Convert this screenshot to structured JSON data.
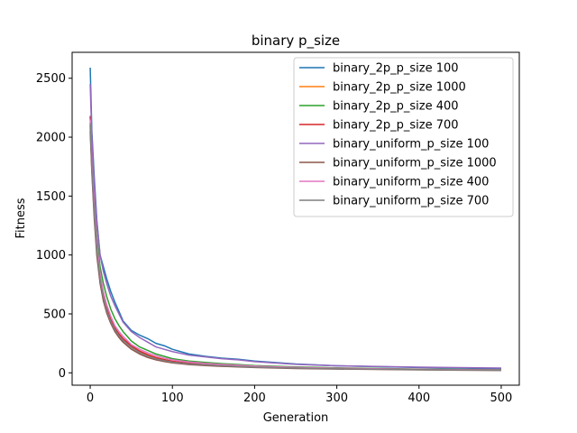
{
  "chart_data": {
    "type": "line",
    "title": "binary p_size",
    "xlabel": "Generation",
    "ylabel": "Fitness",
    "xlim": [
      -22,
      522
    ],
    "ylim": [
      -105,
      2720
    ],
    "xticks": [
      0,
      100,
      200,
      300,
      400,
      500
    ],
    "yticks": [
      0,
      500,
      1000,
      1500,
      2000,
      2500
    ],
    "grid": false,
    "legend_position": "top-right",
    "series": [
      {
        "name": "binary_2p_p_size 100",
        "color": "#1f77b4",
        "x": [
          0,
          2,
          5,
          8,
          12,
          16,
          20,
          25,
          30,
          35,
          40,
          50,
          60,
          70,
          80,
          90,
          100,
          120,
          140,
          160,
          180,
          200,
          250,
          300,
          400,
          500
        ],
        "y": [
          2590,
          2050,
          1650,
          1300,
          1000,
          900,
          800,
          690,
          600,
          520,
          440,
          360,
          320,
          290,
          250,
          230,
          200,
          160,
          140,
          125,
          115,
          100,
          75,
          60,
          45,
          35
        ]
      },
      {
        "name": "binary_2p_p_size 1000",
        "color": "#ff7f0e",
        "x": [
          0,
          2,
          5,
          8,
          12,
          16,
          20,
          25,
          30,
          35,
          40,
          50,
          60,
          70,
          80,
          90,
          100,
          120,
          140,
          160,
          180,
          200,
          250,
          300,
          400,
          500
        ],
        "y": [
          2080,
          1750,
          1350,
          1050,
          800,
          650,
          540,
          440,
          370,
          320,
          280,
          220,
          180,
          150,
          125,
          110,
          95,
          80,
          70,
          62,
          56,
          50,
          42,
          36,
          28,
          22
        ]
      },
      {
        "name": "binary_2p_p_size 400",
        "color": "#2ca02c",
        "x": [
          0,
          2,
          5,
          8,
          12,
          16,
          20,
          25,
          30,
          35,
          40,
          50,
          60,
          70,
          80,
          90,
          100,
          120,
          140,
          160,
          180,
          200,
          250,
          300,
          400,
          500
        ],
        "y": [
          2100,
          1800,
          1450,
          1150,
          900,
          760,
          650,
          540,
          460,
          400,
          350,
          270,
          220,
          190,
          160,
          140,
          120,
          100,
          88,
          78,
          70,
          62,
          50,
          42,
          32,
          26
        ]
      },
      {
        "name": "binary_2p_p_size 700",
        "color": "#d62728",
        "x": [
          0,
          2,
          5,
          8,
          12,
          16,
          20,
          25,
          30,
          35,
          40,
          50,
          60,
          70,
          80,
          90,
          100,
          120,
          140,
          160,
          180,
          200,
          250,
          300,
          400,
          500
        ],
        "y": [
          2180,
          1760,
          1380,
          1080,
          820,
          660,
          560,
          450,
          380,
          330,
          290,
          230,
          185,
          155,
          130,
          112,
          98,
          82,
          72,
          64,
          58,
          52,
          43,
          37,
          29,
          23
        ]
      },
      {
        "name": "binary_uniform_p_size 100",
        "color": "#9467bd",
        "x": [
          0,
          2,
          5,
          8,
          12,
          16,
          20,
          25,
          30,
          35,
          40,
          50,
          60,
          70,
          80,
          90,
          100,
          120,
          140,
          160,
          180,
          200,
          250,
          300,
          400,
          500
        ],
        "y": [
          2450,
          2000,
          1600,
          1280,
          1000,
          860,
          760,
          650,
          570,
          500,
          430,
          350,
          300,
          260,
          220,
          200,
          180,
          150,
          135,
          120,
          110,
          95,
          72,
          60,
          48,
          40
        ]
      },
      {
        "name": "binary_uniform_p_size 1000",
        "color": "#8c564b",
        "x": [
          0,
          2,
          5,
          8,
          12,
          16,
          20,
          25,
          30,
          35,
          40,
          50,
          60,
          70,
          80,
          90,
          100,
          120,
          140,
          160,
          180,
          200,
          250,
          300,
          400,
          500
        ],
        "y": [
          2050,
          1700,
          1300,
          1000,
          760,
          610,
          510,
          420,
          350,
          300,
          260,
          200,
          160,
          130,
          110,
          96,
          84,
          70,
          62,
          55,
          50,
          45,
          37,
          32,
          25,
          20
        ]
      },
      {
        "name": "binary_uniform_p_size 400",
        "color": "#e377c2",
        "x": [
          0,
          2,
          5,
          8,
          12,
          16,
          20,
          25,
          30,
          35,
          40,
          50,
          60,
          70,
          80,
          90,
          100,
          120,
          140,
          160,
          180,
          200,
          250,
          300,
          400,
          500
        ],
        "y": [
          2150,
          1780,
          1400,
          1100,
          840,
          690,
          580,
          480,
          400,
          350,
          310,
          240,
          200,
          170,
          145,
          125,
          110,
          92,
          80,
          71,
          64,
          57,
          46,
          39,
          30,
          24
        ]
      },
      {
        "name": "binary_uniform_p_size 700",
        "color": "#7f7f7f",
        "x": [
          0,
          2,
          5,
          8,
          12,
          16,
          20,
          25,
          30,
          35,
          40,
          50,
          60,
          70,
          80,
          90,
          100,
          120,
          140,
          160,
          180,
          200,
          250,
          300,
          400,
          500
        ],
        "y": [
          2120,
          1720,
          1340,
          1040,
          790,
          640,
          530,
          435,
          365,
          315,
          275,
          215,
          172,
          142,
          118,
          104,
          90,
          76,
          67,
          60,
          54,
          48,
          40,
          34,
          27,
          21
        ]
      }
    ]
  }
}
